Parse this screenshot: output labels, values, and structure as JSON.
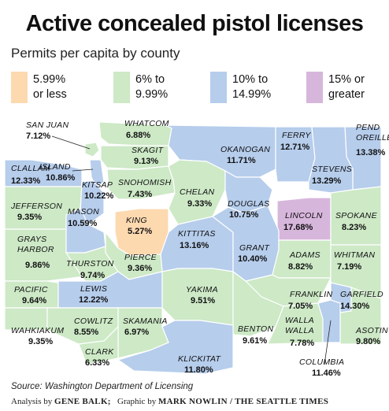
{
  "title": "Active concealed pistol licenses",
  "subtitle": "Permits per capita by county",
  "colors": {
    "tier1": "#fdd9b0",
    "tier2": "#cde9c6",
    "tier3": "#b6cdec",
    "tier4": "#d7b6dc",
    "border": "#ffffff"
  },
  "legend": [
    {
      "label": "5.99%\nor less",
      "color": "#fdd9b0"
    },
    {
      "label": "6% to\n9.99%",
      "color": "#cde9c6"
    },
    {
      "label": "10% to\n14.99%",
      "color": "#b6cdec"
    },
    {
      "label": "15% or\ngreater",
      "color": "#d7b6dc"
    }
  ],
  "counties": [
    {
      "name": "SAN JUAN",
      "value": "7.12%",
      "tier": 2
    },
    {
      "name": "WHATCOM",
      "value": "6.88%",
      "tier": 2
    },
    {
      "name": "SKAGIT",
      "value": "9.13%",
      "tier": 2
    },
    {
      "name": "OKANOGAN",
      "value": "11.71%",
      "tier": 3
    },
    {
      "name": "FERRY",
      "value": "12.71%",
      "tier": 3
    },
    {
      "name": "PEND OREILLE",
      "value": "13.38%",
      "tier": 3
    },
    {
      "name": "CLALLAM",
      "value": "12.33%",
      "tier": 3
    },
    {
      "name": "ISLAND",
      "value": "10.86%",
      "tier": 3
    },
    {
      "name": "SNOHOMISH",
      "value": "7.43%",
      "tier": 2
    },
    {
      "name": "STEVENS",
      "value": "13.29%",
      "tier": 3
    },
    {
      "name": "JEFFERSON",
      "value": "9.35%",
      "tier": 2
    },
    {
      "name": "KITSAP",
      "value": "10.22%",
      "tier": 3
    },
    {
      "name": "CHELAN",
      "value": "9.33%",
      "tier": 2
    },
    {
      "name": "DOUGLAS",
      "value": "10.75%",
      "tier": 3
    },
    {
      "name": "LINCOLN",
      "value": "17.68%",
      "tier": 4
    },
    {
      "name": "SPOKANE",
      "value": "8.23%",
      "tier": 2
    },
    {
      "name": "GRAYS HARBOR",
      "value": "9.86%",
      "tier": 2
    },
    {
      "name": "MASON",
      "value": "10.59%",
      "tier": 3
    },
    {
      "name": "KING",
      "value": "5.27%",
      "tier": 1
    },
    {
      "name": "KITTITAS",
      "value": "13.16%",
      "tier": 3
    },
    {
      "name": "GRANT",
      "value": "10.40%",
      "tier": 3
    },
    {
      "name": "ADAMS",
      "value": "8.82%",
      "tier": 2
    },
    {
      "name": "WHITMAN",
      "value": "7.19%",
      "tier": 2
    },
    {
      "name": "THURSTON",
      "value": "9.74%",
      "tier": 2
    },
    {
      "name": "PIERCE",
      "value": "9.36%",
      "tier": 2
    },
    {
      "name": "PACIFIC",
      "value": "9.64%",
      "tier": 2
    },
    {
      "name": "LEWIS",
      "value": "12.22%",
      "tier": 3
    },
    {
      "name": "YAKIMA",
      "value": "9.51%",
      "tier": 2
    },
    {
      "name": "FRANKLIN",
      "value": "7.05%",
      "tier": 2
    },
    {
      "name": "GARFIELD",
      "value": "14.30%",
      "tier": 3
    },
    {
      "name": "WAHKIAKUM",
      "value": "9.35%",
      "tier": 2
    },
    {
      "name": "COWLITZ",
      "value": "8.55%",
      "tier": 2
    },
    {
      "name": "SKAMANIA",
      "value": "6.97%",
      "tier": 2
    },
    {
      "name": "BENTON",
      "value": "9.61%",
      "tier": 2
    },
    {
      "name": "WALLA WALLA",
      "value": "7.78%",
      "tier": 2
    },
    {
      "name": "ASOTIN",
      "value": "9.80%",
      "tier": 2
    },
    {
      "name": "CLARK",
      "value": "6.33%",
      "tier": 2
    },
    {
      "name": "KLICKITAT",
      "value": "11.80%",
      "tier": 3
    },
    {
      "name": "COLUMBIA",
      "value": "11.46%",
      "tier": 3
    }
  ],
  "source": "Source: Washington Department of Licensing",
  "credits": {
    "analysis_prefix": "Analysis by ",
    "analysis_name": "GENE BALK;",
    "graphic_prefix": "Graphic by ",
    "graphic_name": "MARK NOWLIN / THE SEATTLE TIMES"
  }
}
